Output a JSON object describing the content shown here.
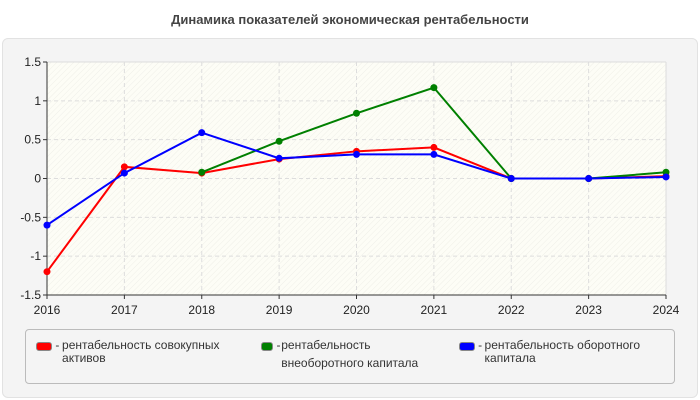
{
  "chart_data": {
    "type": "line",
    "title": "Динамика показателей экономическая рентабельности",
    "xlabel": "",
    "ylabel": "",
    "categories": [
      "2016",
      "2017",
      "2018",
      "2019",
      "2020",
      "2021",
      "2022",
      "2023",
      "2024"
    ],
    "ylim": [
      -1.5,
      1.5
    ],
    "yticks": [
      "1.5",
      "1",
      "0.5",
      "0",
      "-0.5",
      "-1",
      "-1.5"
    ],
    "grid": true,
    "legend_position": "bottom",
    "series": [
      {
        "name": "рентабельность совокупных активов",
        "color": "#ff0000",
        "values": [
          -1.2,
          0.15,
          0.07,
          0.25,
          0.35,
          0.4,
          0.0,
          0.0,
          0.03
        ]
      },
      {
        "name": "рентабельность внеоборотного капитала",
        "color": "#008000",
        "values": [
          null,
          null,
          0.08,
          0.48,
          0.84,
          1.17,
          0.0,
          0.0,
          0.08
        ]
      },
      {
        "name": "рентабельность оборотного капитала",
        "color": "#0000ff",
        "values": [
          -0.6,
          0.07,
          0.59,
          0.26,
          0.31,
          0.31,
          0.0,
          0.0,
          0.02
        ]
      }
    ]
  }
}
